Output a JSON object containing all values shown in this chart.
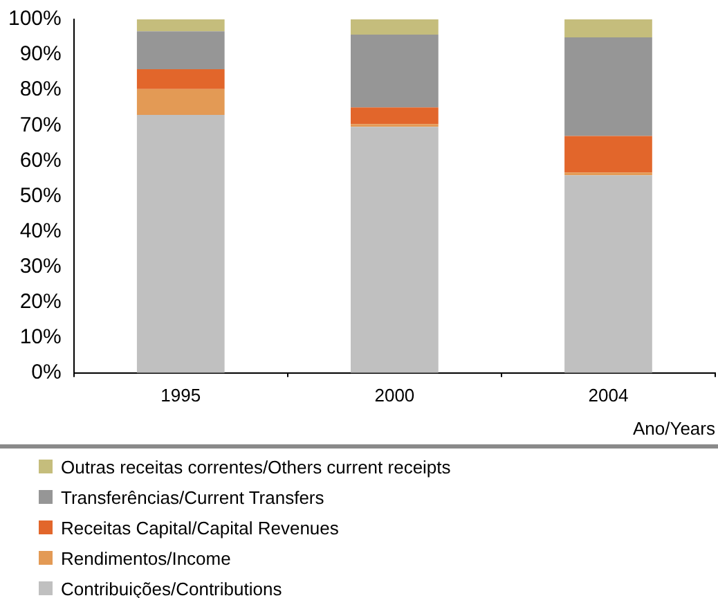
{
  "chart_data": {
    "type": "bar",
    "stacked": true,
    "xlabel": "Ano/Years",
    "categories": [
      "1995",
      "2000",
      "2004"
    ],
    "series": [
      {
        "name": "Contribuições/Contributions",
        "color": "#c0c0c0",
        "values": [
          73.0,
          69.6,
          55.9
        ]
      },
      {
        "name": "Rendimentos/Income",
        "color": "#e39a55",
        "values": [
          7.3,
          0.8,
          0.8
        ]
      },
      {
        "name": "Receitas Capital/Capital Revenues",
        "color": "#e2662b",
        "values": [
          5.6,
          4.7,
          10.3
        ]
      },
      {
        "name": "Transferências/Current Transfers",
        "color": "#969696",
        "values": [
          10.7,
          20.6,
          27.9
        ]
      },
      {
        "name": "Outras receitas correntes/Others current receipts",
        "color": "#c5bd7c",
        "values": [
          3.4,
          4.3,
          5.1
        ]
      }
    ],
    "ylim": [
      0,
      100
    ],
    "yticks": [
      {
        "value": 0,
        "label": "0%"
      },
      {
        "value": 10,
        "label": "10%"
      },
      {
        "value": 20,
        "label": "20%"
      },
      {
        "value": 30,
        "label": "30%"
      },
      {
        "value": 40,
        "label": "40%"
      },
      {
        "value": 50,
        "label": "50%"
      },
      {
        "value": 60,
        "label": "60%"
      },
      {
        "value": 70,
        "label": "70%"
      },
      {
        "value": 80,
        "label": "80%"
      },
      {
        "value": 90,
        "label": "90%"
      },
      {
        "value": 100,
        "label": "100%"
      }
    ],
    "grid": false,
    "legend": "bottom"
  }
}
